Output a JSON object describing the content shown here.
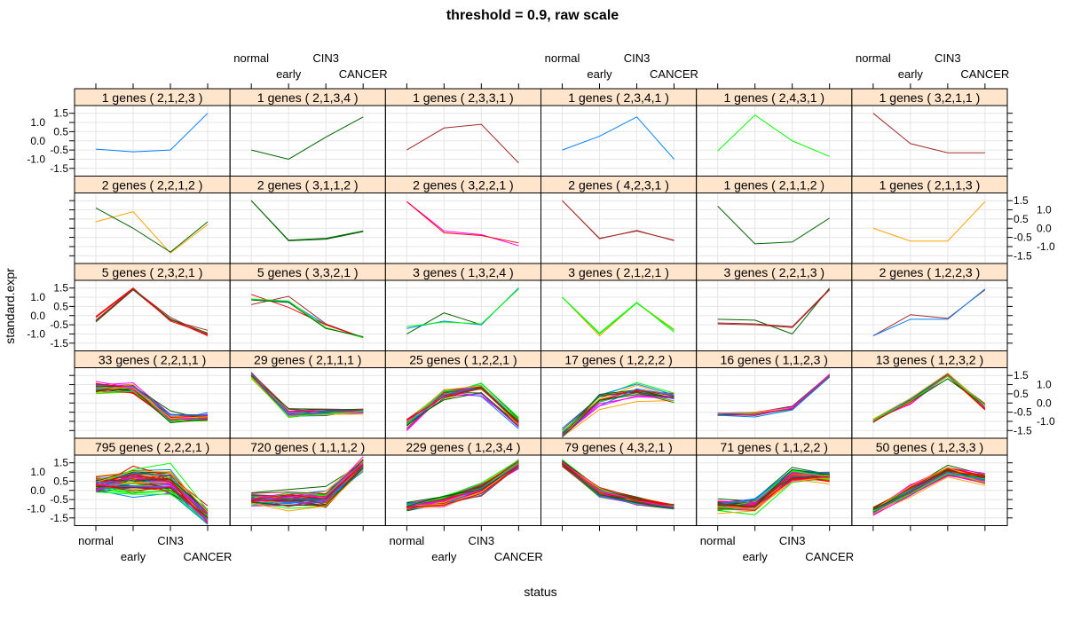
{
  "chart_data": {
    "type": "line",
    "title": "threshold = 0.9, raw scale",
    "xlabel": "status",
    "ylabel": "standard.expr",
    "categories": [
      "normal",
      "early",
      "CIN3",
      "CANCER"
    ],
    "yticks": [
      -1.5,
      -1.0,
      -0.5,
      0.0,
      0.5,
      1.0,
      1.5
    ],
    "ytick_labels": [
      "-1.5",
      "-1.0",
      "-0.5",
      "0.0",
      "0.5",
      "1.0",
      "1.5"
    ],
    "ylim": [
      -1.92,
      1.92
    ],
    "grid": true,
    "palette": [
      "#0080ff",
      "#ff00ff",
      "#006400",
      "#ff0000",
      "#ffa500",
      "#00ff00",
      "#a52a2a"
    ],
    "strip_color": "#ffe5cc",
    "panels": [
      {
        "label": "1 genes ( 2,1,2,3 )",
        "lines": [
          {
            "color": "#0080ff",
            "values": [
              -0.45,
              -0.6,
              -0.5,
              1.5
            ]
          }
        ]
      },
      {
        "label": "1 genes ( 2,1,3,4 )",
        "lines": [
          {
            "color": "#006400",
            "values": [
              -0.5,
              -1.0,
              0.2,
              1.3
            ]
          }
        ]
      },
      {
        "label": "1 genes ( 2,3,3,1 )",
        "lines": [
          {
            "color": "#a52a2a",
            "values": [
              -0.5,
              0.7,
              0.9,
              -1.2
            ]
          }
        ]
      },
      {
        "label": "1 genes ( 2,3,4,1 )",
        "lines": [
          {
            "color": "#0080ff",
            "values": [
              -0.5,
              0.25,
              1.3,
              -1.0
            ]
          }
        ]
      },
      {
        "label": "1 genes ( 2,4,3,1 )",
        "lines": [
          {
            "color": "#00ff00",
            "values": [
              -0.55,
              1.4,
              0.0,
              -0.85
            ]
          }
        ]
      },
      {
        "label": "1 genes ( 3,2,1,1 )",
        "lines": [
          {
            "color": "#a52a2a",
            "values": [
              1.5,
              -0.15,
              -0.65,
              -0.65
            ]
          }
        ]
      },
      {
        "label": "2 genes ( 2,2,1,2 )",
        "lines": [
          {
            "color": "#ffa500",
            "values": [
              0.35,
              0.9,
              -1.35,
              0.2
            ]
          },
          {
            "color": "#006400",
            "values": [
              1.1,
              0.0,
              -1.3,
              0.35
            ]
          }
        ]
      },
      {
        "label": "2 genes ( 3,1,1,2 )",
        "lines": [
          {
            "color": "#006400",
            "values": [
              1.5,
              -0.65,
              -0.55,
              -0.15
            ]
          },
          {
            "color": "#006400",
            "values": [
              1.5,
              -0.68,
              -0.6,
              -0.18
            ]
          }
        ]
      },
      {
        "label": "2 genes ( 3,2,2,1 )",
        "lines": [
          {
            "color": "#ff00ff",
            "values": [
              1.45,
              -0.15,
              -0.35,
              -0.95
            ]
          },
          {
            "color": "#ff0000",
            "values": [
              1.45,
              -0.25,
              -0.4,
              -0.8
            ]
          }
        ]
      },
      {
        "label": "2 genes ( 4,2,3,1 )",
        "lines": [
          {
            "color": "#a52a2a",
            "values": [
              1.5,
              -0.55,
              -0.15,
              -0.65
            ]
          },
          {
            "color": "#a52a2a",
            "values": [
              1.5,
              -0.57,
              -0.12,
              -0.68
            ]
          }
        ]
      },
      {
        "label": "1 genes ( 2,1,1,2 )",
        "lines": [
          {
            "color": "#006400",
            "values": [
              1.2,
              -0.85,
              -0.75,
              0.55
            ]
          }
        ]
      },
      {
        "label": "1 genes ( 2,1,1,3 )",
        "lines": [
          {
            "color": "#ffa500",
            "values": [
              0.0,
              -0.7,
              -0.7,
              1.45
            ]
          }
        ]
      },
      {
        "label": "5 genes ( 2,3,2,1 )",
        "lines": [
          {
            "color": "#ff0000",
            "values": [
              -0.1,
              1.45,
              -0.2,
              -1.1
            ]
          },
          {
            "color": "#a52a2a",
            "values": [
              -0.35,
              1.4,
              -0.25,
              -0.8
            ]
          },
          {
            "color": "#006400",
            "values": [
              -0.3,
              1.42,
              -0.2,
              -0.95
            ]
          },
          {
            "color": "#ff0000",
            "values": [
              -0.05,
              1.5,
              -0.3,
              -1.0
            ]
          },
          {
            "color": "#a52a2a",
            "values": [
              -0.25,
              1.45,
              -0.1,
              -1.05
            ]
          }
        ]
      },
      {
        "label": "5 genes ( 3,3,2,1 )",
        "lines": [
          {
            "color": "#0080ff",
            "values": [
              0.9,
              0.75,
              -0.5,
              -1.2
            ]
          },
          {
            "color": "#a52a2a",
            "values": [
              0.6,
              1.05,
              -0.45,
              -1.2
            ]
          },
          {
            "color": "#ff0000",
            "values": [
              1.15,
              0.45,
              -0.5,
              -1.2
            ]
          },
          {
            "color": "#00ff00",
            "values": [
              0.9,
              0.8,
              -0.65,
              -1.2
            ]
          },
          {
            "color": "#006400",
            "values": [
              0.85,
              0.72,
              -0.7,
              -1.15
            ]
          }
        ]
      },
      {
        "label": "3 genes ( 1,3,2,4 )",
        "lines": [
          {
            "color": "#006400",
            "values": [
              -1.0,
              0.15,
              -0.5,
              1.5
            ]
          },
          {
            "color": "#0080ff",
            "values": [
              -0.7,
              -0.3,
              -0.5,
              1.5
            ]
          },
          {
            "color": "#00ff00",
            "values": [
              -0.6,
              -0.35,
              -0.45,
              1.45
            ]
          }
        ]
      },
      {
        "label": "3 genes ( 2,1,2,1 )",
        "lines": [
          {
            "color": "#ffa500",
            "values": [
              1.0,
              -1.1,
              0.7,
              -0.75
            ]
          },
          {
            "color": "#00ff00",
            "values": [
              1.0,
              -0.95,
              0.72,
              -0.9
            ]
          },
          {
            "color": "#00ff00",
            "values": [
              1.0,
              -1.0,
              0.68,
              -0.8
            ]
          }
        ]
      },
      {
        "label": "3 genes ( 2,2,1,3 )",
        "lines": [
          {
            "color": "#006400",
            "values": [
              -0.2,
              -0.25,
              -1.0,
              1.5
            ]
          },
          {
            "color": "#a52a2a",
            "values": [
              -0.4,
              -0.45,
              -0.6,
              1.45
            ]
          },
          {
            "color": "#a52a2a",
            "values": [
              -0.45,
              -0.5,
              -0.65,
              1.4
            ]
          }
        ]
      },
      {
        "label": "2 genes ( 1,2,2,3 )",
        "lines": [
          {
            "color": "#a52a2a",
            "values": [
              -1.1,
              0.05,
              -0.15,
              1.4
            ]
          },
          {
            "color": "#0080ff",
            "values": [
              -1.1,
              -0.2,
              -0.2,
              1.45
            ]
          }
        ]
      },
      {
        "label": "33 genes ( 2,2,1,1 )",
        "n": 33,
        "mean": [
          0.8,
          0.75,
          -0.85,
          -0.8
        ],
        "spread": 0.25
      },
      {
        "label": "29 genes ( 2,1,1,1 )",
        "n": 29,
        "mean": [
          1.5,
          -0.6,
          -0.55,
          -0.45
        ],
        "spread": 0.12
      },
      {
        "label": "25 genes ( 1,2,2,1 )",
        "n": 25,
        "mean": [
          -1.1,
          0.55,
          0.85,
          -1.1
        ],
        "spread": 0.3
      },
      {
        "label": "17 genes ( 1,2,2,2 )",
        "n": 17,
        "mean": [
          -1.75,
          0.2,
          0.6,
          0.3
        ],
        "spread": 0.3
      },
      {
        "label": "16 genes ( 1,1,2,3 )",
        "n": 16,
        "mean": [
          -0.6,
          -0.6,
          -0.3,
          1.5
        ],
        "spread": 0.08
      },
      {
        "label": "13 genes ( 1,2,3,2 )",
        "n": 13,
        "mean": [
          -1.0,
          0.1,
          1.45,
          -0.2
        ],
        "spread": 0.15
      },
      {
        "label": "795 genes ( 2,2,2,1 )",
        "n": 795,
        "mean": [
          0.3,
          0.45,
          0.4,
          -1.5
        ],
        "spread": 0.45
      },
      {
        "label": "720 genes ( 1,1,1,2 )",
        "n": 720,
        "mean": [
          -0.5,
          -0.5,
          -0.45,
          1.4
        ],
        "spread": 0.3
      },
      {
        "label": "229 genes ( 1,2,3,4 )",
        "n": 229,
        "mean": [
          -0.85,
          -0.55,
          0.1,
          1.45
        ],
        "spread": 0.2
      },
      {
        "label": "79 genes ( 4,3,2,1 )",
        "n": 79,
        "mean": [
          1.5,
          -0.1,
          -0.6,
          -0.9
        ],
        "spread": 0.15
      },
      {
        "label": "71 genes ( 1,1,2,2 )",
        "n": 71,
        "mean": [
          -0.85,
          -0.85,
          0.85,
          0.75
        ],
        "spread": 0.25
      },
      {
        "label": "50 genes ( 1,2,3,3 )",
        "n": 50,
        "mean": [
          -1.1,
          0.0,
          1.1,
          0.6
        ],
        "spread": 0.2
      }
    ]
  }
}
